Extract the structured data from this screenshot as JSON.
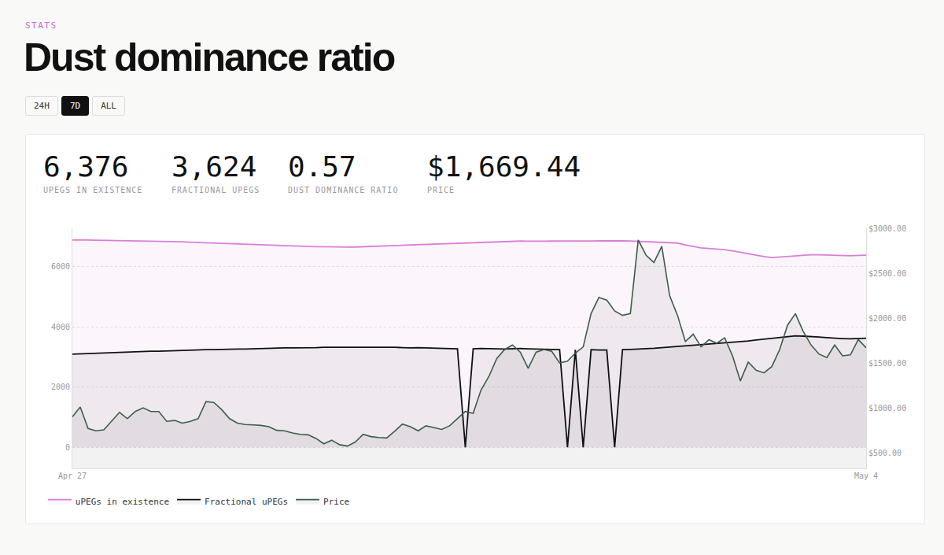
{
  "page": {
    "section": "STATS",
    "title": "Dust dominance ratio",
    "ranges": [
      "24H",
      "7D",
      "ALL"
    ],
    "selected_range": "7D",
    "stats": [
      {
        "value": "6,376",
        "label": "UPEGS IN EXISTENCE"
      },
      {
        "value": "3,624",
        "label": "FRACTIONAL UPEGS"
      },
      {
        "value": "0.57",
        "label": "DUST DOMINANCE RATIO"
      },
      {
        "value": "$1,669.44",
        "label": "PRICE"
      }
    ]
  },
  "chart_data": {
    "type": "area",
    "categories": [
      "Apr 27",
      null,
      null,
      null,
      null,
      null,
      null,
      null,
      null,
      null,
      null,
      null,
      null,
      null,
      null,
      null,
      null,
      null,
      null,
      null,
      null,
      null,
      null,
      null,
      null,
      null,
      null,
      null,
      null,
      null,
      null,
      null,
      null,
      null,
      null,
      null,
      null,
      null,
      null,
      null,
      null,
      null,
      null,
      null,
      null,
      null,
      null,
      null,
      null,
      null,
      null,
      null,
      null,
      null,
      null,
      null,
      null,
      null,
      null,
      null,
      null,
      null,
      null,
      null,
      null,
      null,
      null,
      null,
      null,
      null,
      null,
      null,
      null,
      null,
      null,
      null,
      null,
      null,
      null,
      null,
      null,
      null,
      null,
      null,
      null,
      null,
      null,
      null,
      null,
      null,
      null,
      null,
      null,
      null,
      null,
      null,
      null,
      null,
      null,
      null,
      null,
      "May 4"
    ],
    "series": [
      {
        "name": "uPEGs in existence",
        "color": "#d97fd6",
        "values": [
          6880,
          6885,
          6880,
          6875,
          6870,
          6870,
          6865,
          6870,
          6860,
          6855,
          6850,
          6845,
          6840,
          6830,
          6820,
          6810,
          6800,
          6790,
          6780,
          6770,
          6760,
          6750,
          6740,
          6730,
          6720,
          6710,
          6700,
          6690,
          6690,
          6680,
          6670,
          6660,
          6660,
          6650,
          6650,
          6645,
          6650,
          6660,
          6665,
          6670,
          6680,
          6690,
          6700,
          6710,
          6720,
          6730,
          6745,
          6760,
          6770,
          6780,
          6790,
          6800,
          6810,
          6820,
          6830,
          6835,
          6840,
          6845,
          6840,
          6835,
          6840,
          6845,
          6850,
          6850,
          6855,
          6850,
          6850,
          6855,
          6860,
          6860,
          6855,
          6850,
          6840,
          6835,
          6830,
          6820,
          6800,
          6780,
          6720,
          6660,
          6620,
          6600,
          6580,
          6560,
          6520,
          6470,
          6430,
          6380,
          6330,
          6300,
          6320,
          6340,
          6360,
          6380,
          6390,
          6390,
          6380,
          6380,
          6370,
          6360,
          6370,
          6376
        ]
      },
      {
        "name": "Fractional uPEGs",
        "color": "#111111",
        "values": [
          3090,
          3100,
          3110,
          3130,
          3140,
          3150,
          3160,
          3170,
          3170,
          3180,
          3190,
          3190,
          3200,
          3210,
          3210,
          3220,
          3230,
          3240,
          3240,
          3250,
          3250,
          3260,
          3260,
          3270,
          3280,
          3280,
          3290,
          3300,
          3300,
          3300,
          3310,
          3310,
          3320,
          3320,
          3320,
          3330,
          3330,
          3320,
          3330,
          3320,
          3320,
          3320,
          3310,
          3300,
          3310,
          3300,
          3290,
          3280,
          3280,
          3270,
          0,
          3270,
          3280,
          3280,
          3270,
          3260,
          3270,
          3280,
          3270,
          3260,
          3250,
          3250,
          3240,
          0,
          3240,
          0,
          3240,
          3230,
          3230,
          0,
          3240,
          3250,
          3260,
          3270,
          3290,
          3310,
          3330,
          3350,
          3370,
          3380,
          3400,
          3420,
          3440,
          3460,
          3480,
          3500,
          3530,
          3560,
          3590,
          3620,
          3640,
          3680,
          3700,
          3690,
          3680,
          3660,
          3640,
          3620,
          3610,
          3600,
          3610,
          3624
        ]
      },
      {
        "name": "Price",
        "color": "#3b5e48",
        "axis": "y2",
        "values": [
          900,
          1010,
          770,
          745,
          755,
          850,
          950,
          880,
          960,
          1000,
          960,
          960,
          850,
          860,
          830,
          850,
          880,
          1070,
          1060,
          980,
          880,
          830,
          815,
          810,
          805,
          790,
          750,
          745,
          720,
          705,
          700,
          660,
          600,
          640,
          590,
          575,
          620,
          705,
          680,
          670,
          665,
          740,
          820,
          790,
          745,
          800,
          780,
          760,
          800,
          880,
          960,
          940,
          1200,
          1350,
          1550,
          1650,
          1700,
          1620,
          1440,
          1620,
          1650,
          1630,
          1500,
          1520,
          1610,
          1680,
          2050,
          2230,
          2200,
          2080,
          2030,
          2050,
          2870,
          2700,
          2620,
          2800,
          2250,
          2030,
          1740,
          1820,
          1680,
          1760,
          1720,
          1780,
          1580,
          1300,
          1510,
          1420,
          1390,
          1460,
          1650,
          1920,
          2050,
          1850,
          1700,
          1600,
          1560,
          1700,
          1580,
          1590,
          1760,
          1669.44
        ]
      }
    ],
    "ylim": [
      -700,
      7270
    ],
    "yticks": [
      0,
      2000,
      4000,
      6000
    ],
    "y2lim": [
      326,
      3000
    ],
    "y2ticks": [
      {
        "value": 500,
        "label": "$500.00"
      },
      {
        "value": 1000,
        "label": "$1000.00"
      },
      {
        "value": 1500,
        "label": "$1500.00"
      },
      {
        "value": 2000,
        "label": "$2000.00"
      },
      {
        "value": 2500,
        "label": "$2500.00"
      },
      {
        "value": 3000,
        "label": "$3000.00"
      }
    ],
    "grid": true,
    "legend": "bottom"
  }
}
